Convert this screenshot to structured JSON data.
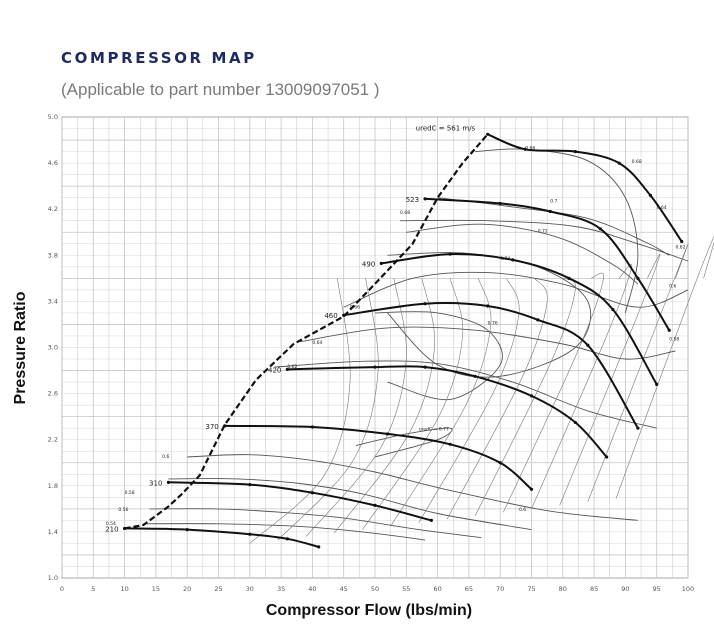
{
  "header": {
    "title": "COMPRESSOR MAP",
    "subtitle": "(Applicable to part number 13009097051 )"
  },
  "chart_data": {
    "type": "line",
    "title": "COMPRESSOR MAP",
    "subtitle": "(Applicable to part number 13009097051 )",
    "xlabel": "Compressor Flow (lbs/min)",
    "ylabel": "Pressure Ratio",
    "xlim": [
      0,
      100
    ],
    "ylim": [
      1.0,
      5.0
    ],
    "grid": true,
    "x_ticks": [
      "0",
      "5",
      "10",
      "15",
      "20",
      "25",
      "30",
      "35",
      "40",
      "45",
      "50",
      "55",
      "60",
      "65",
      "70",
      "75",
      "80",
      "85",
      "90",
      "95",
      "100"
    ],
    "y_ticks": [
      "1.0",
      "1.4",
      "1.8",
      "2.2",
      "2.6",
      "3.0",
      "3.4",
      "3.8",
      "4.2",
      "4.6",
      "5.0"
    ],
    "surge_line": [
      [
        10,
        1.43
      ],
      [
        13,
        1.46
      ],
      [
        17,
        1.62
      ],
      [
        19,
        1.72
      ],
      [
        22,
        1.89
      ],
      [
        26,
        2.33
      ],
      [
        31,
        2.72
      ],
      [
        37,
        3.03
      ],
      [
        45,
        3.27
      ],
      [
        51,
        3.61
      ],
      [
        56,
        3.9
      ],
      [
        60,
        4.3
      ],
      [
        64,
        4.6
      ],
      [
        68,
        4.85
      ]
    ],
    "speed_lines": [
      {
        "label": "210",
        "points": [
          [
            10,
            1.43
          ],
          [
            20,
            1.42
          ],
          [
            30,
            1.38
          ],
          [
            36,
            1.34
          ],
          [
            41,
            1.27
          ]
        ]
      },
      {
        "label": "310",
        "points": [
          [
            17,
            1.83
          ],
          [
            30,
            1.81
          ],
          [
            40,
            1.74
          ],
          [
            50,
            1.63
          ],
          [
            59,
            1.5
          ]
        ]
      },
      {
        "label": "370",
        "points": [
          [
            26,
            2.32
          ],
          [
            40,
            2.31
          ],
          [
            52,
            2.25
          ],
          [
            62,
            2.16
          ],
          [
            70,
            2.0
          ],
          [
            75,
            1.77
          ]
        ]
      },
      {
        "label": "420",
        "points": [
          [
            36,
            2.81
          ],
          [
            50,
            2.83
          ],
          [
            58,
            2.83
          ],
          [
            66,
            2.75
          ],
          [
            75,
            2.58
          ],
          [
            82,
            2.35
          ],
          [
            87,
            2.05
          ]
        ]
      },
      {
        "label": "460",
        "points": [
          [
            45,
            3.28
          ],
          [
            58,
            3.38
          ],
          [
            68,
            3.36
          ],
          [
            76,
            3.24
          ],
          [
            84,
            3.02
          ],
          [
            92,
            2.3
          ]
        ]
      },
      {
        "label": "490",
        "points": [
          [
            51,
            3.73
          ],
          [
            62,
            3.81
          ],
          [
            72,
            3.76
          ],
          [
            81,
            3.6
          ],
          [
            88,
            3.33
          ],
          [
            95,
            2.68
          ]
        ]
      },
      {
        "label": "523",
        "points": [
          [
            58,
            4.29
          ],
          [
            70,
            4.25
          ],
          [
            78,
            4.18
          ],
          [
            86,
            4.03
          ],
          [
            92,
            3.6
          ],
          [
            97,
            3.15
          ]
        ]
      },
      {
        "label": "uredC = 561 m/s",
        "points": [
          [
            68,
            4.85
          ],
          [
            74,
            4.72
          ],
          [
            82,
            4.7
          ],
          [
            89,
            4.6
          ],
          [
            94,
            4.32
          ],
          [
            99,
            3.92
          ]
        ]
      }
    ],
    "speed_labels": [
      "210",
      "310",
      "370",
      "420",
      "460",
      "490",
      "523",
      "uredC = 561 m/s"
    ],
    "efficiency_islands": [
      {
        "label": "0.54",
        "points": [
          [
            13,
            1.47
          ],
          [
            25,
            1.47
          ],
          [
            37,
            1.45
          ],
          [
            48,
            1.4
          ],
          [
            58,
            1.33
          ]
        ]
      },
      {
        "label": "0.56",
        "points": [
          [
            14,
            1.6
          ],
          [
            25,
            1.6
          ],
          [
            35,
            1.57
          ],
          [
            45,
            1.52
          ],
          [
            57,
            1.42
          ],
          [
            67,
            1.35
          ]
        ]
      },
      {
        "label": "0.58",
        "points": [
          [
            17,
            1.86
          ],
          [
            28,
            1.86
          ],
          [
            38,
            1.82
          ],
          [
            48,
            1.73
          ],
          [
            60,
            1.56
          ],
          [
            75,
            1.42
          ]
        ]
      },
      {
        "label": "0.6",
        "points": [
          [
            20,
            2.05
          ],
          [
            30,
            2.07
          ],
          [
            40,
            2.02
          ],
          [
            50,
            1.92
          ],
          [
            62,
            1.76
          ],
          [
            78,
            1.58
          ],
          [
            92,
            1.5
          ]
        ]
      },
      {
        "label": "0.62",
        "points": [
          [
            34,
            2.83
          ],
          [
            48,
            2.88
          ],
          [
            60,
            2.86
          ],
          [
            72,
            2.7
          ],
          [
            84,
            2.45
          ],
          [
            95,
            2.3
          ]
        ]
      },
      {
        "label": "0.64",
        "points": [
          [
            38,
            3.05
          ],
          [
            52,
            3.17
          ],
          [
            66,
            3.15
          ],
          [
            80,
            3.03
          ],
          [
            90,
            2.9
          ],
          [
            98,
            2.97
          ]
        ]
      },
      {
        "label": "0.66",
        "points": [
          [
            45,
            3.35
          ],
          [
            56,
            3.6
          ],
          [
            68,
            3.65
          ],
          [
            80,
            3.55
          ],
          [
            92,
            3.35
          ],
          [
            100,
            3.5
          ]
        ]
      },
      {
        "label": "0.68",
        "points": [
          [
            54,
            4.1
          ],
          [
            68,
            4.1
          ],
          [
            82,
            4.05
          ],
          [
            92,
            3.9
          ],
          [
            100,
            3.75
          ]
        ]
      },
      {
        "label": "0.7",
        "points": [
          [
            60,
            4.3
          ],
          [
            72,
            4.22
          ],
          [
            84,
            4.12
          ],
          [
            93,
            3.92
          ],
          [
            97,
            3.8
          ]
        ]
      },
      {
        "label": "0.72",
        "points": [
          [
            55,
            4.0
          ],
          [
            67,
            4.07
          ],
          [
            79,
            3.96
          ],
          [
            88,
            3.72
          ],
          [
            92,
            3.55
          ]
        ]
      },
      {
        "label": "0.74",
        "points": [
          [
            52,
            3.8
          ],
          [
            64,
            3.82
          ],
          [
            76,
            3.7
          ],
          [
            84,
            3.4
          ],
          [
            82,
            3.0
          ],
          [
            70,
            2.75
          ],
          [
            60,
            2.85
          ],
          [
            52,
            3.3
          ]
        ]
      },
      {
        "label": "0.76",
        "points": [
          [
            50,
            3.3
          ],
          [
            60,
            3.3
          ],
          [
            68,
            3.15
          ],
          [
            70,
            2.85
          ],
          [
            62,
            2.55
          ],
          [
            52,
            2.7
          ]
        ]
      },
      {
        "label": "0.66",
        "points": [
          [
            66,
            4.7
          ],
          [
            74,
            4.72
          ],
          [
            84,
            4.62
          ],
          [
            90,
            4.3
          ],
          [
            92,
            3.8
          ],
          [
            90,
            3.3
          ]
        ]
      },
      {
        "label": "uredC = 0.77",
        "points": [
          [
            47,
            2.15
          ],
          [
            55,
            2.25
          ],
          [
            62,
            2.3
          ],
          [
            60,
            2.2
          ],
          [
            50,
            2.05
          ]
        ]
      }
    ],
    "efficiency_labels": [
      "0.54",
      "0.56",
      "0.58",
      "0.6",
      "0.62",
      "0.64",
      "0.66",
      "0.68",
      "0.7",
      "0.72",
      "0.74",
      "0.76",
      "0.66",
      "0.68",
      "0.64",
      "0.62",
      "0.6",
      "0.58",
      "0.6",
      "uredC = 0.77"
    ]
  }
}
